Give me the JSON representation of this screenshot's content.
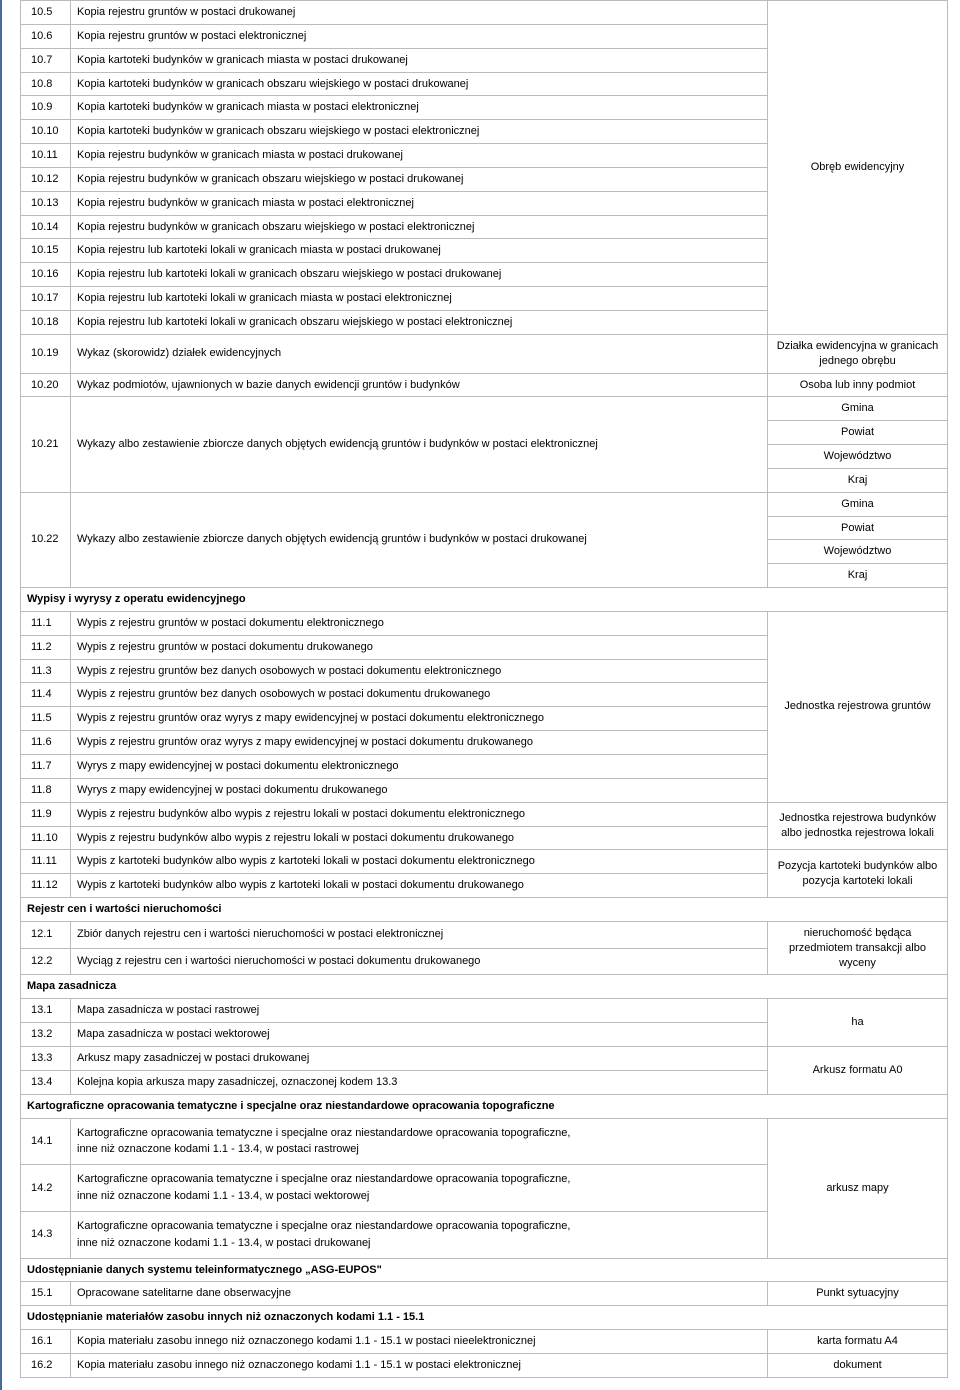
{
  "rows": [
    {
      "type": "row",
      "num": "10.5",
      "desc": "Kopia rejestru gruntów w postaci drukowanej"
    },
    {
      "type": "row",
      "num": "10.6",
      "desc": "Kopia rejestru gruntów w postaci elektronicznej"
    },
    {
      "type": "row",
      "num": "10.7",
      "desc": "Kopia kartoteki budynków w granicach miasta w postaci drukowanej"
    },
    {
      "type": "row",
      "num": "10.8",
      "desc": "Kopia kartoteki budynków w granicach obszaru wiejskiego w postaci drukowanej"
    },
    {
      "type": "row",
      "num": "10.9",
      "desc": "Kopia kartoteki budynków w granicach miasta w postaci elektronicznej"
    },
    {
      "type": "row",
      "num": "10.10",
      "desc": "Kopia kartoteki budynków w granicach obszaru wiejskiego w postaci elektronicznej"
    },
    {
      "type": "row",
      "num": "10.11",
      "desc": "Kopia rejestru budynków w granicach miasta w postaci drukowanej"
    },
    {
      "type": "row",
      "num": "10.12",
      "desc": "Kopia rejestru budynków w granicach obszaru wiejskiego w postaci drukowanej",
      "right": "Obręb ewidencyjny",
      "right_span": 14,
      "right_start": true
    },
    {
      "type": "row",
      "num": "10.13",
      "desc": "Kopia rejestru budynków w granicach miasta w postaci elektronicznej"
    },
    {
      "type": "row",
      "num": "10.14",
      "desc": "Kopia rejestru budynków w granicach obszaru wiejskiego w postaci elektronicznej"
    },
    {
      "type": "row",
      "num": "10.15",
      "desc": "Kopia rejestru lub kartoteki lokali w granicach miasta w postaci drukowanej"
    },
    {
      "type": "row",
      "num": "10.16",
      "desc": "Kopia rejestru lub kartoteki lokali w granicach obszaru wiejskiego  w postaci drukowanej"
    },
    {
      "type": "row",
      "num": "10.17",
      "desc": "Kopia rejestru lub kartoteki lokali w granicach miasta w postaci elektronicznej"
    },
    {
      "type": "row",
      "num": "10.18",
      "desc": "Kopia rejestru lub kartoteki lokali w granicach obszaru wiejskiego w postaci elektronicznej"
    },
    {
      "type": "row",
      "num": "10.19",
      "desc": "Wykaz (skorowidz) działek ewidencyjnych",
      "right": "Działka ewidencyjna w granicach jednego obrębu",
      "right_span": 1,
      "right_start": true
    },
    {
      "type": "row",
      "num": "10.20",
      "desc": "Wykaz podmiotów, ujawnionych w bazie danych ewidencji gruntów i budynków",
      "right": "Osoba lub inny podmiot",
      "right_span": 1,
      "right_start": true
    },
    {
      "type": "multirow",
      "num": "10.21",
      "desc": "Wykazy albo zestawienie zbiorcze danych objętych ewidencją gruntów i budynków w postaci elektronicznej",
      "rights": [
        "Gmina",
        "Powiat",
        "Województwo",
        "Kraj"
      ]
    },
    {
      "type": "multirow",
      "num": "10.22",
      "desc": "Wykazy albo zestawienie zbiorcze danych objętych ewidencją gruntów i budynków w postaci drukowanej",
      "rights": [
        "Gmina",
        "Powiat",
        "Województwo",
        "Kraj"
      ]
    },
    {
      "type": "section",
      "text": "Wypisy i wyrysy z operatu ewidencyjnego"
    },
    {
      "type": "row",
      "num": "11.1",
      "desc": "Wypis z rejestru gruntów w postaci dokumentu elektronicznego",
      "right": "Jednostka rejestrowa gruntów",
      "right_span": 8,
      "right_start": true
    },
    {
      "type": "row",
      "num": "11.2",
      "desc": "Wypis z rejestru gruntów w postaci dokumentu drukowanego"
    },
    {
      "type": "row",
      "num": "11.3",
      "desc": "Wypis z rejestru gruntów bez danych osobowych w postaci dokumentu elektronicznego"
    },
    {
      "type": "row",
      "num": "11.4",
      "desc": "Wypis z rejestru gruntów bez danych osobowych w postaci dokumentu drukowanego"
    },
    {
      "type": "row",
      "num": "11.5",
      "desc": "Wypis z rejestru gruntów oraz wyrys z mapy ewidencyjnej w postaci dokumentu elektronicznego"
    },
    {
      "type": "row",
      "num": "11.6",
      "desc": "Wypis z rejestru gruntów oraz wyrys z mapy ewidencyjnej w postaci dokumentu drukowanego"
    },
    {
      "type": "row",
      "num": "11.7",
      "desc": "Wyrys z mapy ewidencyjnej w postaci dokumentu elektronicznego"
    },
    {
      "type": "row",
      "num": "11.8",
      "desc": "Wyrys z mapy ewidencyjnej w postaci dokumentu drukowanego"
    },
    {
      "type": "row",
      "num": "11.9",
      "desc": "Wypis z rejestru budynków albo wypis z rejestru lokali w postaci dokumentu elektronicznego",
      "right": "Jednostka rejestrowa budynków albo jednostka rejestrowa lokali",
      "right_span": 2,
      "right_start": true
    },
    {
      "type": "row",
      "num": "11.10",
      "desc": "Wypis z rejestru budynków albo wypis z rejestru lokali w postaci dokumentu drukowanego"
    },
    {
      "type": "row",
      "num": "11.11",
      "desc": "Wypis z kartoteki budynków albo wypis z kartoteki lokali w postaci dokumentu elektronicznego",
      "right": "Pozycja kartoteki budynków albo pozycja kartoteki lokali",
      "right_span": 2,
      "right_start": true
    },
    {
      "type": "row",
      "num": "11.12",
      "desc": "Wypis z kartoteki budynków albo wypis z kartoteki lokali w postaci dokumentu drukowanego"
    },
    {
      "type": "section",
      "text": "Rejestr cen i wartości nieruchomości"
    },
    {
      "type": "row",
      "num": "12.1",
      "desc": "Zbiór danych rejestru cen i wartości nieruchomości w postaci elektronicznej",
      "right": "nieruchomość będąca przedmiotem transakcji albo wyceny",
      "right_span": 2,
      "right_start": true
    },
    {
      "type": "row",
      "num": "12.2",
      "desc": "Wyciąg z rejestru cen i wartości nieruchomości w postaci dokumentu drukowanego"
    },
    {
      "type": "section",
      "text": "Mapa zasadnicza"
    },
    {
      "type": "row",
      "num": "13.1",
      "desc": "Mapa zasadnicza w postaci rastrowej",
      "right": "ha",
      "right_span": 2,
      "right_start": true
    },
    {
      "type": "row",
      "num": "13.2",
      "desc": "Mapa zasadnicza w postaci wektorowej"
    },
    {
      "type": "row",
      "num": "13.3",
      "desc": "Arkusz mapy zasadniczej w postaci drukowanej",
      "right": "Arkusz formatu A0",
      "right_span": 2,
      "right_start": true
    },
    {
      "type": "row",
      "num": "13.4",
      "desc": "Kolejna kopia arkusza mapy zasadniczej, oznaczonej kodem 13.3"
    },
    {
      "type": "section",
      "text": "Kartograficzne opracowania tematyczne i specjalne oraz niestandardowe opracowania topograficzne"
    },
    {
      "type": "row2",
      "num": "14.1",
      "line1": "Kartograficzne opracowania tematyczne i specjalne oraz niestandardowe opracowania topograficzne,",
      "line2": "inne niż oznaczone kodami 1.1 - 13.4, w postaci rastrowej",
      "right": "arkusz mapy",
      "right_span": 3,
      "right_start": true
    },
    {
      "type": "row2",
      "num": "14.2",
      "line1": "Kartograficzne opracowania tematyczne i specjalne oraz niestandardowe opracowania topograficzne,",
      "line2": "inne niż oznaczone kodami 1.1 - 13.4, w postaci wektorowej"
    },
    {
      "type": "row2",
      "num": "14.3",
      "line1": "Kartograficzne opracowania tematyczne i specjalne oraz niestandardowe opracowania topograficzne,",
      "line2": "inne niż oznaczone kodami 1.1 - 13.4, w postaci drukowanej"
    },
    {
      "type": "section",
      "text": "Udostępnianie danych systemu teleinformatycznego „ASG-EUPOS\""
    },
    {
      "type": "row",
      "num": "15.1",
      "desc": "Opracowane satelitarne dane obserwacyjne",
      "right": "Punkt sytuacyjny",
      "right_span": 1,
      "right_start": true
    },
    {
      "type": "section",
      "text": "Udostępnianie materiałów zasobu innych niż oznaczonych kodami 1.1 - 15.1"
    },
    {
      "type": "row",
      "num": "16.1",
      "desc": "Kopia materiału zasobu innego niż oznaczonego kodami 1.1 - 15.1 w postaci nieelektronicznej",
      "right": "karta formatu A4",
      "right_span": 1,
      "right_start": true
    },
    {
      "type": "row",
      "num": "16.2",
      "desc": "Kopia materiału zasobu innego niż oznaczonego kodami 1.1 - 15.1 w postaci elektronicznej",
      "right": "dokument",
      "right_span": 1,
      "right_start": true
    }
  ],
  "first_right": "Obręb ewidencyjny"
}
